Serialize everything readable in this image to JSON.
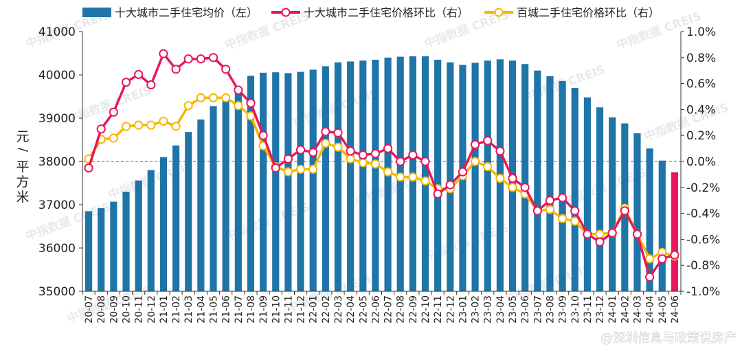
{
  "chart_data": {
    "type": "bar",
    "categories": [
      "20-07",
      "20-08",
      "20-09",
      "20-10",
      "20-11",
      "20-12",
      "21-01",
      "21-02",
      "21-03",
      "21-04",
      "21-05",
      "21-06",
      "21-07",
      "21-08",
      "21-09",
      "21-10",
      "21-11",
      "21-12",
      "22-01",
      "22-02",
      "22-03",
      "22-04",
      "22-05",
      "22-06",
      "22-07",
      "22-08",
      "22-09",
      "22-10",
      "22-11",
      "22-12",
      "23-01",
      "23-02",
      "23-03",
      "23-04",
      "23-05",
      "23-06",
      "23-07",
      "23-08",
      "23-09",
      "23-10",
      "23-11",
      "23-12",
      "24-01",
      "24-02",
      "24-03",
      "24-04",
      "24-05",
      "24-06"
    ],
    "series": [
      {
        "name": "十大城市二手住宅均价（左）",
        "type": "bar",
        "axis": "left",
        "color": "#1f74a8",
        "values": [
          36850,
          36920,
          37070,
          37300,
          37560,
          37800,
          38100,
          38370,
          38680,
          38970,
          39280,
          39400,
          39590,
          39980,
          40050,
          40060,
          40040,
          40070,
          40120,
          40200,
          40290,
          40310,
          40330,
          40350,
          40400,
          40420,
          40430,
          40430,
          40350,
          40290,
          40230,
          40280,
          40330,
          40360,
          40330,
          40250,
          40100,
          39970,
          39860,
          39700,
          39480,
          39250,
          39020,
          38880,
          38650,
          38300,
          38020,
          37750
        ]
      },
      {
        "name": "十大城市二手住宅价格环比（右）",
        "type": "line",
        "axis": "right",
        "color": "#e8175d",
        "values": [
          -0.05,
          0.25,
          0.38,
          0.61,
          0.67,
          0.59,
          0.83,
          0.71,
          0.79,
          0.79,
          0.8,
          0.71,
          0.55,
          0.45,
          0.2,
          -0.05,
          0.02,
          0.09,
          0.07,
          0.23,
          0.22,
          0.08,
          0.05,
          0.06,
          0.1,
          0.0,
          0.05,
          0.0,
          -0.25,
          -0.18,
          -0.08,
          0.13,
          0.16,
          0.08,
          -0.13,
          -0.2,
          -0.38,
          -0.3,
          -0.28,
          -0.38,
          -0.56,
          -0.62,
          -0.55,
          -0.38,
          -0.56,
          -0.89,
          -0.75,
          -0.72
        ],
        "last_bar_color": "#e8175d"
      },
      {
        "name": "百城二手住宅价格环比（右）",
        "type": "line",
        "axis": "right",
        "color": "#f5b800",
        "values": [
          0.02,
          0.17,
          0.18,
          0.27,
          0.28,
          0.28,
          0.31,
          0.27,
          0.43,
          0.49,
          0.49,
          0.49,
          0.43,
          0.35,
          0.12,
          -0.04,
          -0.08,
          -0.06,
          -0.06,
          0.14,
          0.11,
          0.02,
          -0.01,
          -0.02,
          -0.08,
          -0.12,
          -0.12,
          -0.15,
          -0.21,
          -0.21,
          -0.11,
          0.0,
          -0.04,
          -0.13,
          -0.2,
          -0.25,
          -0.38,
          -0.37,
          -0.44,
          -0.46,
          -0.56,
          -0.56,
          -0.55,
          -0.36,
          -0.56,
          -0.75,
          -0.7,
          -0.73
        ]
      }
    ],
    "ylabel_left": "元/平方米",
    "ylim_left": [
      35000,
      41000
    ],
    "yticks_left": [
      35000,
      36000,
      37000,
      38000,
      39000,
      40000,
      41000
    ],
    "ytick_labels_left": [
      "35000",
      "36000",
      "37000",
      "38000",
      "39000",
      "40000",
      "41000"
    ],
    "ylim_right": [
      -1.0,
      1.0
    ],
    "yticks_right": [
      -1.0,
      -0.8,
      -0.6,
      -0.4,
      -0.2,
      0.0,
      0.2,
      0.4,
      0.6,
      0.8,
      1.0
    ],
    "ytick_labels_right": [
      "-1.0%",
      "-0.8%",
      "-0.6%",
      "-0.4%",
      "-0.2%",
      "0.0%",
      "0.2%",
      "0.4%",
      "0.6%",
      "0.8%",
      "1.0%"
    ],
    "reference_line_right": 0.0,
    "reference_line_color": "#e8175d",
    "legend_position": "top",
    "grid": false,
    "watermark": "中指数据 CREIS",
    "credit": "@深圳信息与政策说房产"
  }
}
